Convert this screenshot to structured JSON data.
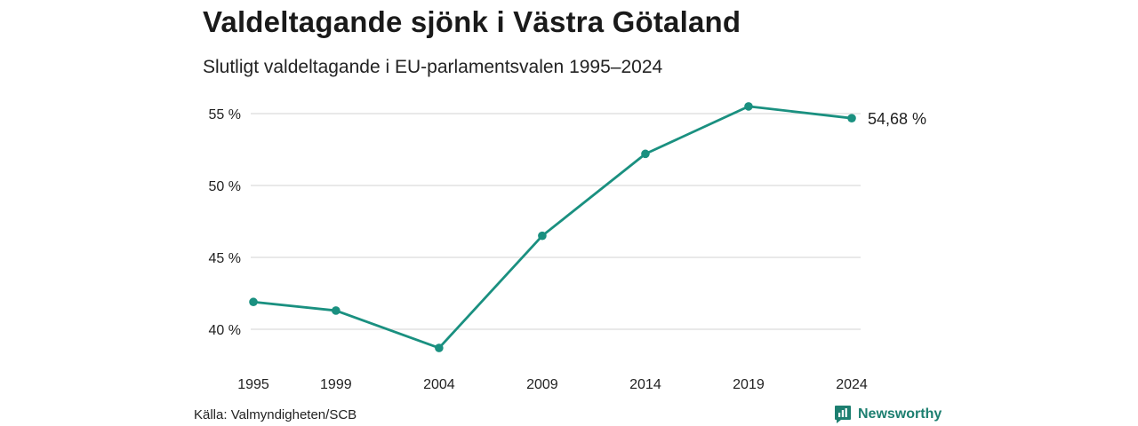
{
  "title": "Valdeltagande sjönk i Västra Götaland",
  "subtitle": "Slutligt valdeltagande i EU-parlamentsvalen 1995–2024",
  "source": "Källa: Valmyndigheten/SCB",
  "brand": {
    "name": "Newsworthy",
    "icon": "bar-chart-logo-icon",
    "color": "#1d7f70"
  },
  "chart_data": {
    "type": "line",
    "x": [
      1995,
      1999,
      2004,
      2009,
      2014,
      2019,
      2024
    ],
    "series": [
      {
        "values": [
          41.9,
          41.3,
          38.7,
          46.5,
          52.2,
          55.5,
          54.68
        ],
        "color": "#1a9080"
      }
    ],
    "x_tick_labels": [
      "1995",
      "1999",
      "2004",
      "2009",
      "2014",
      "2019",
      "2024"
    ],
    "y_ticks": [
      40,
      45,
      50,
      55
    ],
    "y_tick_labels": [
      "40 %",
      "45 %",
      "50 %",
      "55 %"
    ],
    "ylim": [
      37.5,
      56.5
    ],
    "end_label": "54,68 %",
    "grid": true
  }
}
